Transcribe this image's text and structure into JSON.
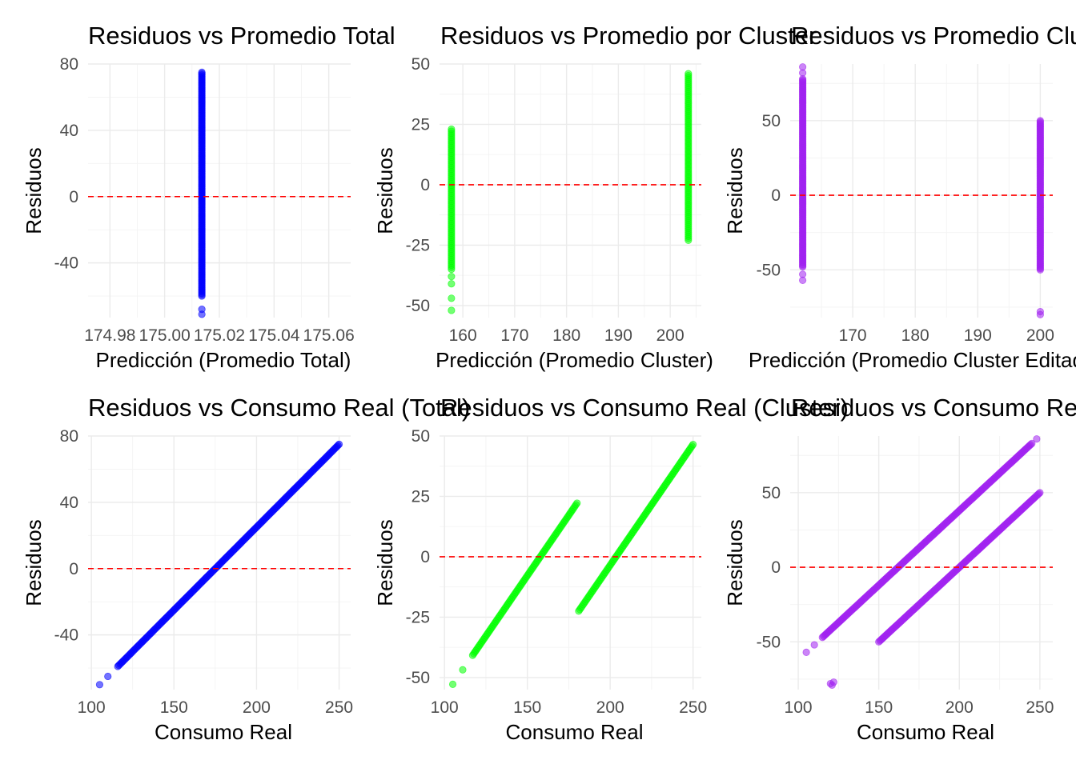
{
  "chart_data": [
    {
      "type": "scatter",
      "title": "Residuos vs Promedio Total",
      "xlabel": "Predicción (Promedio Total)",
      "ylabel": "Residuos",
      "color": "#0000ff",
      "xlim": [
        174.972,
        175.068
      ],
      "ylim": [
        -73,
        80
      ],
      "xticks": [
        "174.98",
        "175.00",
        "175.02",
        "175.04",
        "175.06"
      ],
      "xtick_values": [
        174.98,
        175.0,
        175.02,
        175.04,
        175.06
      ],
      "yticks": [
        "-40",
        "0",
        "40",
        "80"
      ],
      "ytick_values": [
        -40,
        0,
        40,
        80
      ],
      "hline": 0,
      "series": [
        {
          "x_values": [
            175.0136
          ],
          "y_from": -60,
          "y_to": 75,
          "y_outliers": [
            -68,
            -71
          ]
        }
      ]
    },
    {
      "type": "scatter",
      "title": "Residuos vs Promedio por Cluster",
      "xlabel": "Predicción (Promedio Cluster)",
      "ylabel": "Residuos",
      "color": "#00ff00",
      "xlim": [
        155.5,
        206
      ],
      "ylim": [
        -55,
        50
      ],
      "xticks": [
        "160",
        "170",
        "180",
        "190",
        "200"
      ],
      "xtick_values": [
        160,
        170,
        180,
        190,
        200
      ],
      "yticks": [
        "-50",
        "-25",
        "0",
        "25",
        "50"
      ],
      "ytick_values": [
        -50,
        -25,
        0,
        25,
        50
      ],
      "hline": 0,
      "series": [
        {
          "x_values": [
            157.8
          ],
          "y_from": -35,
          "y_to": 23,
          "y_outliers": [
            -38,
            -41,
            -47,
            -52
          ]
        },
        {
          "x_values": [
            203.5
          ],
          "y_from": -23,
          "y_to": 46,
          "y_outliers": []
        }
      ]
    },
    {
      "type": "scatter",
      "title": "Residuos vs Promedio Cluster Editado",
      "xlabel": "Predicción (Promedio Cluster Editado)",
      "ylabel": "Residuos",
      "color": "#a020f0",
      "xlim": [
        160,
        202
      ],
      "ylim": [
        -82,
        88
      ],
      "xticks": [
        "170",
        "180",
        "190",
        "200"
      ],
      "xtick_values": [
        170,
        180,
        190,
        200
      ],
      "yticks": [
        "-50",
        "0",
        "50"
      ],
      "ytick_values": [
        -50,
        0,
        50
      ],
      "hline": 0,
      "series": [
        {
          "x_values": [
            162
          ],
          "y_from": -48,
          "y_to": 78,
          "y_outliers": [
            -53,
            -57,
            82,
            86
          ]
        },
        {
          "x_values": [
            200
          ],
          "y_from": -50,
          "y_to": 50,
          "y_outliers": [
            -78,
            -80
          ]
        }
      ]
    },
    {
      "type": "scatter",
      "title": "Residuos vs Consumo Real (Total)",
      "xlabel": "Consumo Real",
      "ylabel": "Residuos",
      "color": "#0000ff",
      "xlim": [
        98,
        257
      ],
      "ylim": [
        -73,
        80
      ],
      "xticks": [
        "100",
        "150",
        "200",
        "250"
      ],
      "xtick_values": [
        100,
        150,
        200,
        250
      ],
      "yticks": [
        "-40",
        "0",
        "40",
        "80"
      ],
      "ytick_values": [
        -40,
        0,
        40,
        80
      ],
      "hline": 0,
      "series": [
        {
          "x_from": 116,
          "x_to": 250,
          "offset": -175.01,
          "extra_x": [
            105,
            110
          ]
        }
      ]
    },
    {
      "type": "scatter",
      "title": "Residuos vs Consumo Real (Cluster)",
      "xlabel": "Consumo Real",
      "ylabel": "Residuos",
      "color": "#00ff00",
      "xlim": [
        97,
        255
      ],
      "ylim": [
        -55,
        50
      ],
      "xticks": [
        "100",
        "150",
        "200",
        "250"
      ],
      "xtick_values": [
        100,
        150,
        200,
        250
      ],
      "yticks": [
        "-50",
        "-25",
        "0",
        "25",
        "50"
      ],
      "ytick_values": [
        -50,
        -25,
        0,
        25,
        50
      ],
      "hline": 0,
      "series": [
        {
          "x_from": 117,
          "x_to": 180,
          "offset": -157.8,
          "extra_x": [
            105,
            111
          ]
        },
        {
          "x_from": 181,
          "x_to": 250,
          "offset": -203.5,
          "extra_x": []
        }
      ]
    },
    {
      "type": "scatter",
      "title": "Residuos vs Consumo Real (Cluster Editado)",
      "xlabel": "Consumo Real",
      "ylabel": "Residuos",
      "color": "#a020f0",
      "xlim": [
        95,
        258
      ],
      "ylim": [
        -82,
        88
      ],
      "xticks": [
        "100",
        "150",
        "200",
        "250"
      ],
      "xtick_values": [
        100,
        150,
        200,
        250
      ],
      "yticks": [
        "-50",
        "0",
        "50"
      ],
      "ytick_values": [
        -50,
        0,
        50
      ],
      "hline": 0,
      "series": [
        {
          "x_from": 115,
          "x_to": 245,
          "offset": -162,
          "extra_x": [
            105,
            110,
            248
          ]
        },
        {
          "x_from": 150,
          "x_to": 250,
          "offset": -200,
          "extra_x": []
        },
        {
          "points": [
            [
              120,
              -78
            ],
            [
              121,
              -79
            ],
            [
              122,
              -77
            ]
          ]
        }
      ]
    }
  ]
}
